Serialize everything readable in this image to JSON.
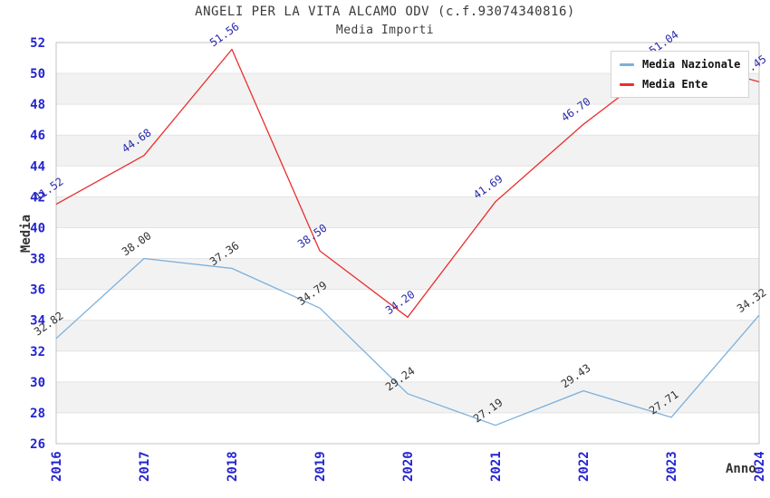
{
  "title": "ANGELI PER LA VITA ALCAMO ODV (c.f.93074340816)",
  "subtitle": "Media Importi",
  "chart_data": {
    "type": "line",
    "x": [
      "2016",
      "2017",
      "2018",
      "2019",
      "2020",
      "2021",
      "2022",
      "2023",
      "2024"
    ],
    "series": [
      {
        "name": "Media Nazionale",
        "color": "#7cb0dc",
        "label_color": "#333333",
        "values": [
          32.82,
          38.0,
          37.36,
          34.79,
          29.24,
          27.19,
          29.43,
          27.71,
          34.32
        ]
      },
      {
        "name": "Media Ente",
        "color": "#ea2e2e",
        "label_color": "#2a2aae",
        "values": [
          41.52,
          44.68,
          51.56,
          38.5,
          34.2,
          41.69,
          46.7,
          51.04,
          49.45
        ]
      }
    ],
    "xlabel": "Anno",
    "ylabel": "Media",
    "ylim": [
      26,
      52
    ],
    "ytick_step": 2,
    "grid": "horizontal-bands-alternating",
    "legend_position": "top-right",
    "style": {
      "tick_color": "#2424d0",
      "band_color": "#f2f2f2",
      "grid_color": "#e3e3e3",
      "border_color": "#c3c3c3",
      "title_color": "#3a3a3a"
    }
  }
}
